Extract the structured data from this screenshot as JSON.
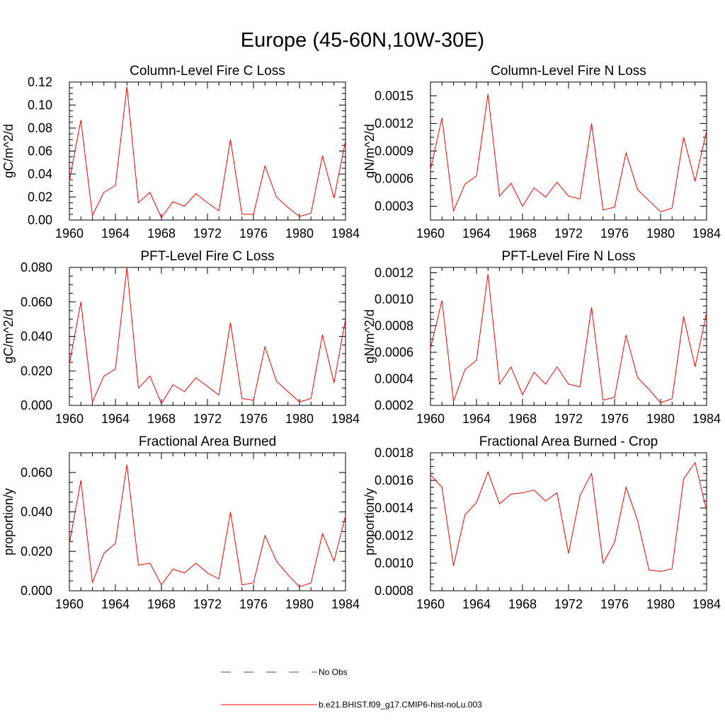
{
  "figure": {
    "title": "Europe (45-60N,10W-30E)"
  },
  "legend": {
    "items": [
      {
        "label": "No Obs",
        "color": "#4a4a9a",
        "dash": true
      },
      {
        "label": "b.e21.BHIST.f09_g17.CMIP6-hist-noLu.003",
        "color": "#ff0000",
        "dash": false
      }
    ]
  },
  "colors": {
    "series": "#ff0000",
    "axis": "#000000"
  },
  "chart_data": [
    {
      "type": "line",
      "title": "Column-Level Fire C Loss",
      "ylabel": "gC/m^2/d",
      "xlim": [
        1960,
        1984
      ],
      "ylim": [
        0,
        0.12
      ],
      "x_ticks": [
        "1960",
        "1964",
        "1968",
        "1972",
        "1976",
        "1980",
        "1984"
      ],
      "y_ticks": [
        "0.00",
        "0.02",
        "0.04",
        "0.06",
        "0.08",
        "0.10",
        "0.12"
      ],
      "x": [
        1960,
        1961,
        1962,
        1963,
        1964,
        1965,
        1966,
        1967,
        1968,
        1969,
        1970,
        1971,
        1972,
        1973,
        1974,
        1975,
        1976,
        1977,
        1978,
        1979,
        1980,
        1981,
        1982,
        1983,
        1984
      ],
      "series": [
        {
          "color": "#ff0000",
          "values": [
            0.034,
            0.087,
            0.004,
            0.024,
            0.03,
            0.116,
            0.015,
            0.024,
            0.002,
            0.016,
            0.012,
            0.023,
            0.015,
            0.008,
            0.07,
            0.005,
            0.005,
            0.047,
            0.02,
            0.011,
            0.003,
            0.006,
            0.056,
            0.019,
            0.069
          ]
        }
      ]
    },
    {
      "type": "line",
      "title": "Column-Level Fire N Loss",
      "ylabel": "gN/m^2/d",
      "xlim": [
        1960,
        1984
      ],
      "ylim": [
        0.00015,
        0.00165
      ],
      "x_ticks": [
        "1960",
        "1964",
        "1968",
        "1972",
        "1976",
        "1980",
        "1984"
      ],
      "y_ticks": [
        "0.0003",
        "0.0006",
        "0.0009",
        "0.0012",
        "0.0015"
      ],
      "y_tick_values": [
        0.0003,
        0.0006,
        0.0009,
        0.0012,
        0.0015
      ],
      "x": [
        1960,
        1961,
        1962,
        1963,
        1964,
        1965,
        1966,
        1967,
        1968,
        1969,
        1970,
        1971,
        1972,
        1973,
        1974,
        1975,
        1976,
        1977,
        1978,
        1979,
        1980,
        1981,
        1982,
        1983,
        1984
      ],
      "series": [
        {
          "color": "#ff0000",
          "values": [
            0.0007,
            0.00126,
            0.00025,
            0.00054,
            0.00063,
            0.00152,
            0.00041,
            0.00055,
            0.0003,
            0.0005,
            0.0004,
            0.00056,
            0.00041,
            0.00038,
            0.0012,
            0.00026,
            0.00029,
            0.00088,
            0.00048,
            0.00036,
            0.00024,
            0.00028,
            0.00105,
            0.00057,
            0.00112
          ]
        }
      ]
    },
    {
      "type": "line",
      "title": "PFT-Level Fire C Loss",
      "ylabel": "gC/m^2/d",
      "xlim": [
        1960,
        1984
      ],
      "ylim": [
        0,
        0.08
      ],
      "x_ticks": [
        "1960",
        "1964",
        "1968",
        "1972",
        "1976",
        "1980",
        "1984"
      ],
      "y_ticks": [
        "0.000",
        "0.020",
        "0.040",
        "0.060",
        "0.080"
      ],
      "x": [
        1960,
        1961,
        1962,
        1963,
        1964,
        1965,
        1966,
        1967,
        1968,
        1969,
        1970,
        1971,
        1972,
        1973,
        1974,
        1975,
        1976,
        1977,
        1978,
        1979,
        1980,
        1981,
        1982,
        1983,
        1984
      ],
      "series": [
        {
          "color": "#ff0000",
          "values": [
            0.024,
            0.06,
            0.002,
            0.017,
            0.021,
            0.08,
            0.01,
            0.017,
            0.001,
            0.012,
            0.008,
            0.016,
            0.011,
            0.006,
            0.048,
            0.004,
            0.003,
            0.034,
            0.014,
            0.008,
            0.002,
            0.004,
            0.041,
            0.013,
            0.05
          ]
        }
      ]
    },
    {
      "type": "line",
      "title": "PFT-Level Fire N Loss",
      "ylabel": "gN/m^2/d",
      "xlim": [
        1960,
        1984
      ],
      "ylim": [
        0.0002,
        0.00124
      ],
      "x_ticks": [
        "1960",
        "1964",
        "1968",
        "1972",
        "1976",
        "1980",
        "1984"
      ],
      "y_ticks": [
        "0.0002",
        "0.0004",
        "0.0006",
        "0.0008",
        "0.0010",
        "0.0012"
      ],
      "y_tick_values": [
        0.0002,
        0.0004,
        0.0006,
        0.0008,
        0.001,
        0.0012
      ],
      "x": [
        1960,
        1961,
        1962,
        1963,
        1964,
        1965,
        1966,
        1967,
        1968,
        1969,
        1970,
        1971,
        1972,
        1973,
        1974,
        1975,
        1976,
        1977,
        1978,
        1979,
        1980,
        1981,
        1982,
        1983,
        1984
      ],
      "series": [
        {
          "color": "#ff0000",
          "values": [
            0.00063,
            0.00099,
            0.00023,
            0.00047,
            0.00054,
            0.00119,
            0.00036,
            0.00049,
            0.00028,
            0.00045,
            0.00036,
            0.00049,
            0.00036,
            0.00034,
            0.00094,
            0.00024,
            0.00026,
            0.00073,
            0.00041,
            0.00032,
            0.00022,
            0.00025,
            0.00087,
            0.00049,
            0.0009
          ]
        }
      ]
    },
    {
      "type": "line",
      "title": "Fractional Area Burned",
      "ylabel": "proportion/y",
      "xlim": [
        1960,
        1984
      ],
      "ylim": [
        0,
        0.07
      ],
      "x_ticks": [
        "1960",
        "1964",
        "1968",
        "1972",
        "1976",
        "1980",
        "1984"
      ],
      "y_ticks": [
        "0.000",
        "0.020",
        "0.040",
        "0.060"
      ],
      "x": [
        1960,
        1961,
        1962,
        1963,
        1964,
        1965,
        1966,
        1967,
        1968,
        1969,
        1970,
        1971,
        1972,
        1973,
        1974,
        1975,
        1976,
        1977,
        1978,
        1979,
        1980,
        1981,
        1982,
        1983,
        1984
      ],
      "series": [
        {
          "color": "#ff0000",
          "values": [
            0.024,
            0.056,
            0.004,
            0.019,
            0.024,
            0.064,
            0.013,
            0.014,
            0.003,
            0.011,
            0.009,
            0.014,
            0.009,
            0.006,
            0.04,
            0.003,
            0.004,
            0.028,
            0.015,
            0.008,
            0.002,
            0.004,
            0.029,
            0.015,
            0.038
          ]
        }
      ]
    },
    {
      "type": "line",
      "title": "Fractional Area Burned - Crop",
      "ylabel": "proportion/y",
      "xlim": [
        1960,
        1984
      ],
      "ylim": [
        0.0008,
        0.0018
      ],
      "x_ticks": [
        "1960",
        "1964",
        "1968",
        "1972",
        "1976",
        "1980",
        "1984"
      ],
      "y_ticks": [
        "0.0008",
        "0.0010",
        "0.0012",
        "0.0014",
        "0.0016",
        "0.0018"
      ],
      "y_tick_values": [
        0.0008,
        0.001,
        0.0012,
        0.0014,
        0.0016,
        0.0018
      ],
      "x": [
        1960,
        1961,
        1962,
        1963,
        1964,
        1965,
        1966,
        1967,
        1968,
        1969,
        1970,
        1971,
        1972,
        1973,
        1974,
        1975,
        1976,
        1977,
        1978,
        1979,
        1980,
        1981,
        1982,
        1983,
        1984
      ],
      "series": [
        {
          "color": "#ff0000",
          "values": [
            0.00164,
            0.00155,
            0.00098,
            0.00135,
            0.00144,
            0.00166,
            0.00143,
            0.0015,
            0.00151,
            0.00153,
            0.00145,
            0.00151,
            0.00107,
            0.00149,
            0.00165,
            0.001,
            0.00115,
            0.00155,
            0.00131,
            0.00095,
            0.00094,
            0.00096,
            0.00161,
            0.00173,
            0.00138
          ]
        }
      ]
    }
  ]
}
